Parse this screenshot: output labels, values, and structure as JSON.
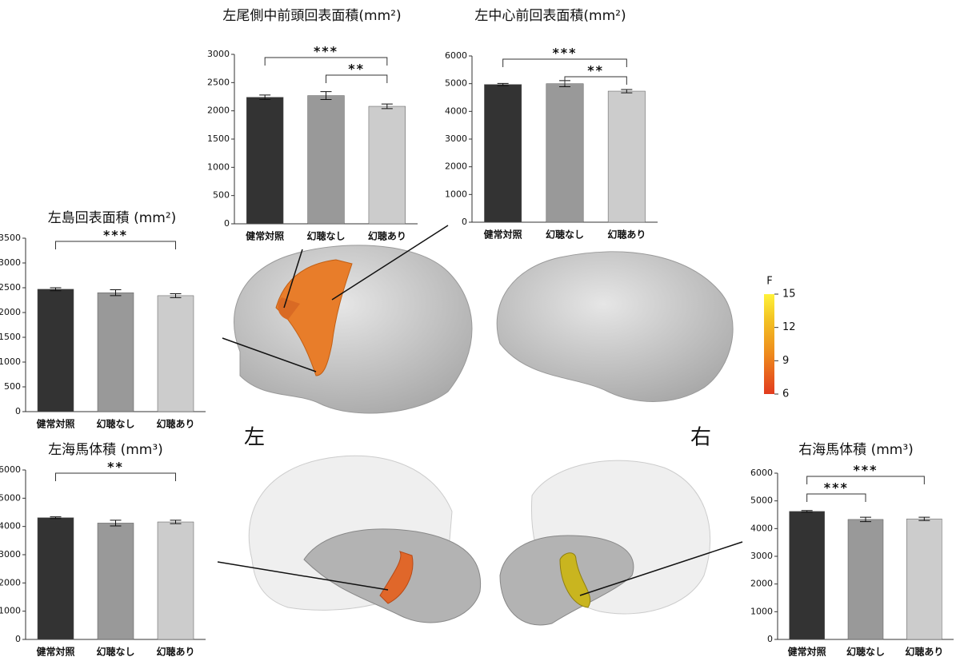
{
  "chart_data": [
    {
      "type": "bar",
      "title": "左尾側中前頭回表面積(mm²)",
      "categories": [
        "健常対照",
        "幻聴なし",
        "幻聴あり"
      ],
      "values": [
        2240,
        2270,
        2080
      ],
      "errors": [
        40,
        70,
        40
      ],
      "colors": [
        "#333333",
        "#999999",
        "#cccccc"
      ],
      "ylim": [
        0,
        3000
      ],
      "yticks": [
        0,
        500,
        1000,
        1500,
        2000,
        2500,
        3000
      ],
      "brackets": [
        {
          "between": [
            "健常対照",
            "幻聴あり"
          ],
          "label": "***"
        },
        {
          "between": [
            "幻聴なし",
            "幻聴あり"
          ],
          "label": "**"
        }
      ]
    },
    {
      "type": "bar",
      "title": "左中心前回表面積(mm²)",
      "categories": [
        "健常対照",
        "幻聴なし",
        "幻聴あり"
      ],
      "values": [
        4970,
        5000,
        4730
      ],
      "errors": [
        40,
        110,
        60
      ],
      "colors": [
        "#333333",
        "#999999",
        "#cccccc"
      ],
      "ylim": [
        0,
        6000
      ],
      "yticks": [
        0,
        1000,
        2000,
        3000,
        4000,
        5000,
        6000
      ],
      "brackets": [
        {
          "between": [
            "健常対照",
            "幻聴あり"
          ],
          "label": "***"
        },
        {
          "between": [
            "幻聴なし",
            "幻聴あり"
          ],
          "label": "**"
        }
      ]
    },
    {
      "type": "bar",
      "title": "左島回表面積 (mm²)",
      "categories": [
        "健常対照",
        "幻聴なし",
        "幻聴あり"
      ],
      "values": [
        2470,
        2400,
        2340
      ],
      "errors": [
        30,
        60,
        40
      ],
      "colors": [
        "#333333",
        "#999999",
        "#cccccc"
      ],
      "ylim": [
        0,
        3500
      ],
      "yticks": [
        0,
        500,
        1000,
        1500,
        2000,
        2500,
        3000,
        3500
      ],
      "brackets": [
        {
          "between": [
            "健常対照",
            "幻聴あり"
          ],
          "label": "***"
        }
      ]
    },
    {
      "type": "bar",
      "title": "左海馬体積 (mm³)",
      "categories": [
        "健常対照",
        "幻聴なし",
        "幻聴あり"
      ],
      "values": [
        4310,
        4120,
        4160
      ],
      "errors": [
        30,
        100,
        60
      ],
      "colors": [
        "#333333",
        "#999999",
        "#cccccc"
      ],
      "ylim": [
        0,
        6000
      ],
      "yticks": [
        0,
        1000,
        2000,
        3000,
        4000,
        5000,
        6000
      ],
      "brackets": [
        {
          "between": [
            "健常対照",
            "幻聴あり"
          ],
          "label": "**"
        }
      ]
    },
    {
      "type": "bar",
      "title": "右海馬体積 (mm³)",
      "categories": [
        "健常対照",
        "幻聴なし",
        "幻聴あり"
      ],
      "values": [
        4620,
        4330,
        4350
      ],
      "errors": [
        30,
        80,
        60
      ],
      "colors": [
        "#333333",
        "#999999",
        "#cccccc"
      ],
      "ylim": [
        0,
        6000
      ],
      "yticks": [
        0,
        1000,
        2000,
        3000,
        4000,
        5000,
        6000
      ],
      "brackets": [
        {
          "between": [
            "健常対照",
            "幻聴あり"
          ],
          "label": "***"
        },
        {
          "between": [
            "健常対照",
            "幻聴なし"
          ],
          "label": "***"
        }
      ]
    }
  ],
  "brain_labels": {
    "left": "左",
    "right": "右"
  },
  "colorbar": {
    "title": "F",
    "ticks": [
      6,
      9,
      12,
      15
    ],
    "lim": [
      6,
      15
    ]
  }
}
